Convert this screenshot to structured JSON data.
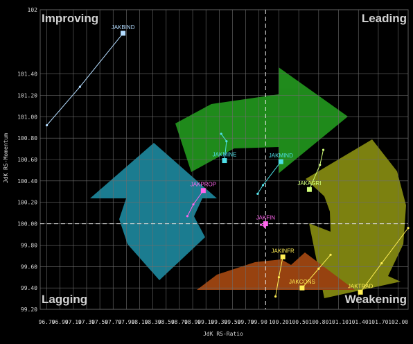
{
  "chart_data": {
    "type": "scatter",
    "title": "",
    "xlabel": "JdK RS-Ratio",
    "ylabel": "JdK RS-Momentum",
    "xlim": [
      96.6,
      102.15
    ],
    "ylim": [
      99.2,
      102.0
    ],
    "grid": true,
    "reference_lines": {
      "x": 100.0,
      "y": 100.0
    },
    "quadrants": {
      "top_left": "Improving",
      "top_right": "Leading",
      "bottom_left": "Lagging",
      "bottom_right": "Weakening"
    },
    "x_ticks": [
      "96.70",
      "96.90",
      "97.10",
      "97.30",
      "97.50",
      "97.70",
      "97.90",
      "98.10",
      "98.30",
      "98.50",
      "98.70",
      "98.90",
      "99.10",
      "99.30",
      "99.50",
      "99.70",
      "99.90",
      "100.20",
      "100.50",
      "100.80",
      "101.10",
      "101.40",
      "101.70",
      "102.00"
    ],
    "y_ticks": [
      "102",
      "101.40",
      "101.20",
      "101.00",
      "100.80",
      "100.60",
      "100.40",
      "100.20",
      "100.00",
      "99.80",
      "99.60",
      "99.40",
      "99.20"
    ],
    "y_tick_values": [
      102.0,
      101.4,
      101.2,
      101.0,
      100.8,
      100.6,
      100.4,
      100.2,
      100.0,
      99.8,
      99.6,
      99.4,
      99.2
    ],
    "series": [
      {
        "name": "JAKBIND",
        "color": "#b4dcff",
        "x": [
          96.7,
          97.2,
          97.85
        ],
        "y": [
          100.92,
          101.28,
          101.78
        ]
      },
      {
        "name": "JAKMINE",
        "color": "#4fe0e8",
        "x": [
          99.33,
          99.41,
          99.38
        ],
        "y": [
          100.84,
          100.77,
          100.59
        ]
      },
      {
        "name": "JAKMIND",
        "color": "#4fe0e8",
        "x": [
          99.88,
          99.96,
          100.23
        ],
        "y": [
          100.28,
          100.36,
          100.58
        ]
      },
      {
        "name": "JAKAGRI",
        "color": "#d2ff7a",
        "x": [
          100.87,
          100.82,
          100.66
        ],
        "y": [
          100.69,
          100.55,
          100.32
        ]
      },
      {
        "name": "JAKPROP",
        "color": "#ff66ee",
        "x": [
          98.82,
          98.91,
          99.06
        ],
        "y": [
          100.07,
          100.18,
          100.31
        ]
      },
      {
        "name": "JAKFIN",
        "color": "#ff66ee",
        "x": [
          99.93,
          99.99,
          100.0
        ],
        "y": [
          99.99,
          99.97,
          100.0
        ]
      },
      {
        "name": "JAKINFR",
        "color": "#ffee55",
        "x": [
          100.15,
          100.2,
          100.26
        ],
        "y": [
          99.32,
          99.5,
          99.69
        ]
      },
      {
        "name": "JAKCONS",
        "color": "#ffee55",
        "x": [
          100.98,
          100.8,
          100.55
        ],
        "y": [
          99.71,
          99.58,
          99.4
        ]
      },
      {
        "name": "JAKTRAD",
        "color": "#ffee55",
        "x": [
          102.15,
          101.75,
          101.43
        ],
        "y": [
          99.96,
          99.63,
          99.36
        ]
      }
    ]
  }
}
